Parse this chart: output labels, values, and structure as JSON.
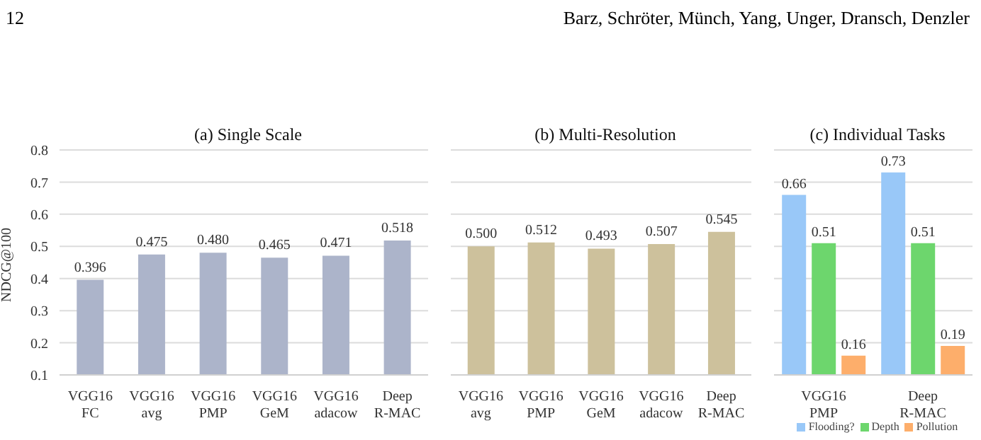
{
  "chart_data": [
    {
      "type": "bar",
      "title": "(a) Single Scale",
      "ylabel": "NDCG@100",
      "annotations": [
        "12",
        "Barz, Schröter, Münch, Yang, Unger, Dransch, Denzler"
      ],
      "categories": [
        "VGG16\nFC",
        "VGG16\navg",
        "VGG16\nPMP",
        "VGG16\nGeM",
        "VGG16\nadacow",
        "Deep\nR-MAC"
      ],
      "series": [
        {
          "color": "#acb4ca",
          "values": [
            0.396,
            0.475,
            0.48,
            0.465,
            0.471,
            0.518
          ],
          "value_labels": [
            "0.396",
            "0.475",
            "0.480",
            "0.465",
            "0.471",
            "0.518"
          ]
        }
      ],
      "ylim": [
        0.1,
        0.8
      ],
      "yticks": [
        0.1,
        0.2,
        0.3,
        0.4,
        0.5,
        0.6,
        0.7,
        0.8
      ],
      "grid": "y"
    },
    {
      "type": "bar",
      "title": "(b) Multi-Resolution",
      "categories": [
        "VGG16\navg",
        "VGG16\nPMP",
        "VGG16\nGeM",
        "VGG16\nadacow",
        "Deep\nR-MAC"
      ],
      "series": [
        {
          "color": "#cdc19c",
          "values": [
            0.5,
            0.512,
            0.493,
            0.507,
            0.545
          ],
          "value_labels": [
            "0.500",
            "0.512",
            "0.493",
            "0.507",
            "0.545"
          ]
        }
      ],
      "ylim": [
        0.1,
        0.8
      ],
      "yticks": [
        0.1,
        0.2,
        0.3,
        0.4,
        0.5,
        0.6,
        0.7,
        0.8
      ],
      "grid": "y",
      "tick_labels": "x"
    },
    {
      "type": "bar",
      "title": "(c) Individual Tasks",
      "categories": [
        "VGG16\nPMP",
        "Deep\nR-MAC"
      ],
      "series": [
        {
          "name": "Flooding?",
          "color": "#99c8f8",
          "values": [
            0.66,
            0.73
          ]
        },
        {
          "name": "Depth",
          "color": "#6dd66d",
          "values": [
            0.51,
            0.51
          ]
        },
        {
          "name": "Pollution",
          "color": "#fdae6b",
          "values": [
            0.16,
            0.19
          ]
        }
      ],
      "data_labels": true,
      "legend": "bottom",
      "ylim": [
        0.1,
        0.8
      ],
      "yticks": [
        0.1,
        0.2,
        0.3,
        0.4,
        0.5,
        0.6,
        0.7,
        0.8
      ],
      "grid": "y",
      "tick_labels": "x"
    }
  ]
}
